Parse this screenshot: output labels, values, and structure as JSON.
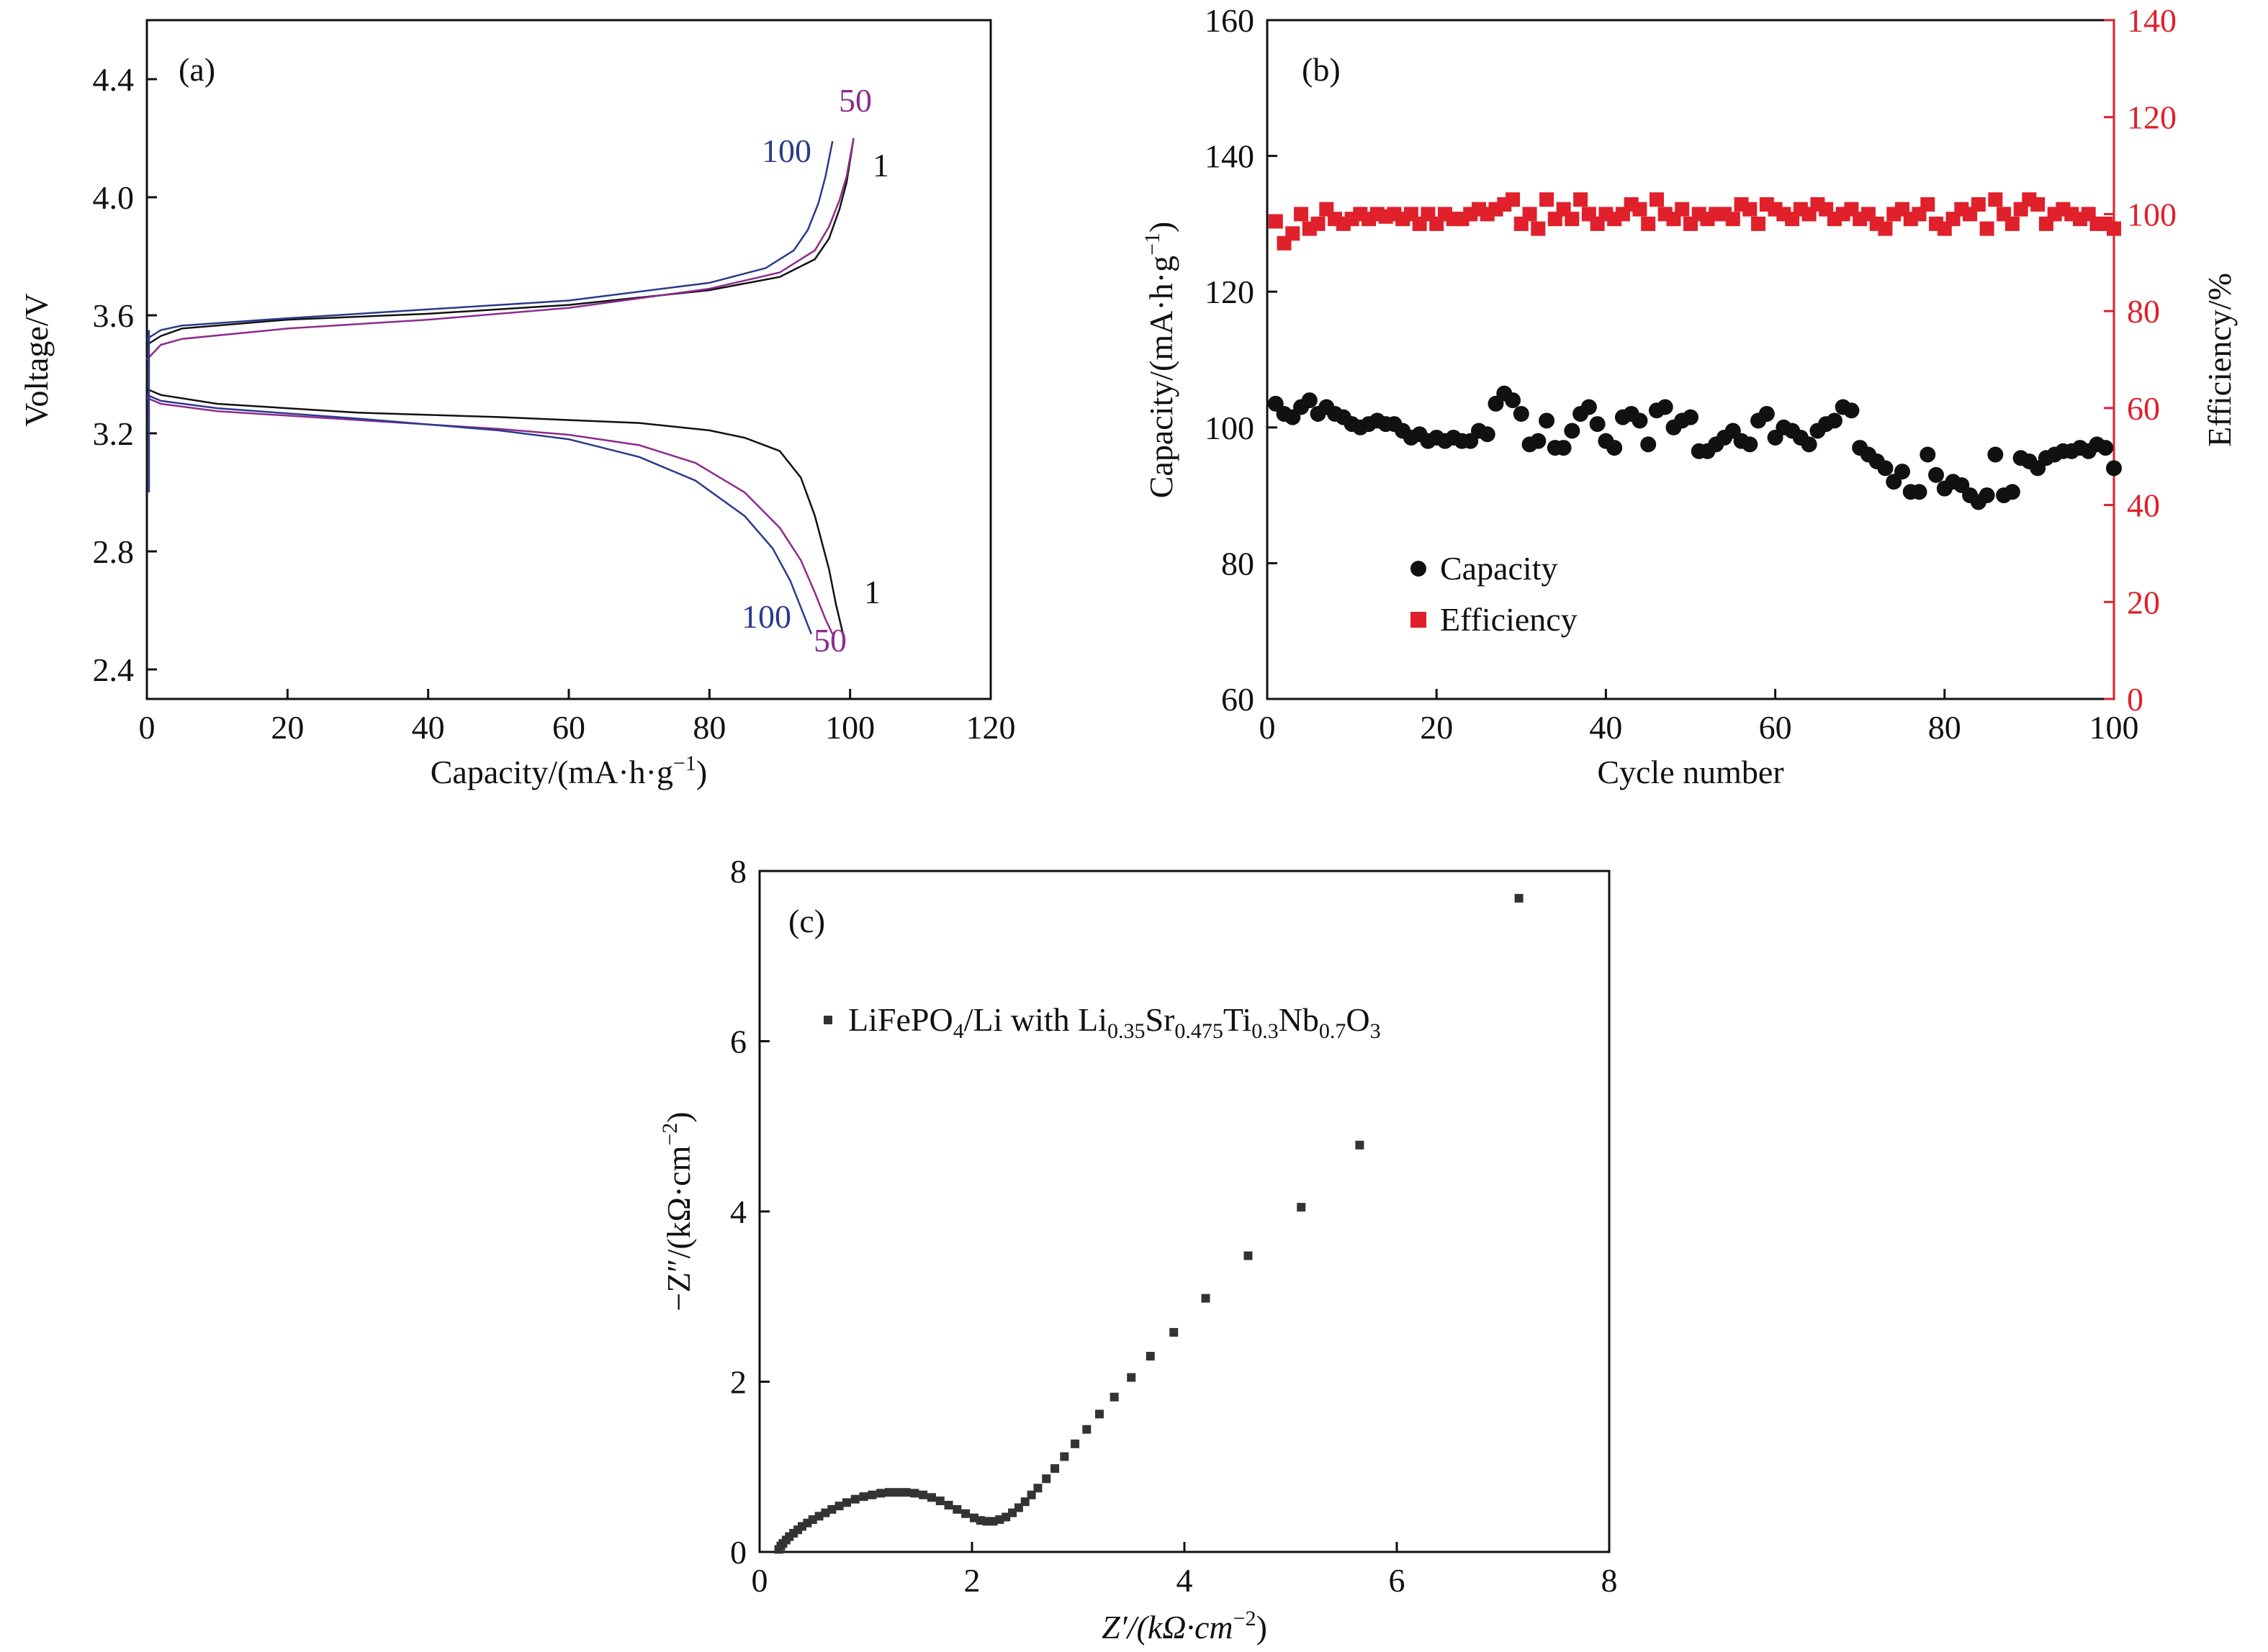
{
  "colors": {
    "black": "#111111",
    "red": "#e0202a",
    "blue": "#2b3a8c",
    "magenta": "#8e2a8e"
  },
  "chart_data": [
    {
      "panel": "(a)",
      "type": "line",
      "xlabel_main": "Capacity/(mA·h·g",
      "xlabel_sup": "−1",
      "xlabel_end": ")",
      "ylabel": "Voltage/V",
      "xlim": [
        0,
        120
      ],
      "ylim": [
        2.3,
        4.6
      ],
      "xticks": [
        0,
        20,
        40,
        60,
        80,
        100,
        120
      ],
      "yticks": [
        2.4,
        2.8,
        3.2,
        3.6,
        4.0,
        4.4
      ],
      "ytick_labels": [
        "2.4",
        "2.8",
        "3.2",
        "3.6",
        "4.0",
        "4.4"
      ],
      "series": [
        {
          "name": "1",
          "color": "#111111",
          "charge": [
            [
              0,
              3.5
            ],
            [
              2,
              3.53
            ],
            [
              5,
              3.555
            ],
            [
              20,
              3.585
            ],
            [
              40,
              3.605
            ],
            [
              60,
              3.635
            ],
            [
              80,
              3.685
            ],
            [
              90,
              3.73
            ],
            [
              95,
              3.79
            ],
            [
              97,
              3.86
            ],
            [
              98.5,
              3.96
            ],
            [
              99.5,
              4.05
            ],
            [
              100.5,
              4.2
            ]
          ],
          "discharge": [
            [
              0,
              3.35
            ],
            [
              2,
              3.33
            ],
            [
              10,
              3.3
            ],
            [
              30,
              3.27
            ],
            [
              50,
              3.255
            ],
            [
              70,
              3.235
            ],
            [
              80,
              3.21
            ],
            [
              85,
              3.185
            ],
            [
              90,
              3.14
            ],
            [
              93,
              3.05
            ],
            [
              95,
              2.92
            ],
            [
              97,
              2.74
            ],
            [
              98,
              2.62
            ],
            [
              99,
              2.52
            ]
          ]
        },
        {
          "name": "50",
          "color": "#8e2a8e",
          "charge": [
            [
              0,
              3.45
            ],
            [
              2,
              3.5
            ],
            [
              5,
              3.52
            ],
            [
              20,
              3.555
            ],
            [
              40,
              3.585
            ],
            [
              60,
              3.625
            ],
            [
              80,
              3.69
            ],
            [
              90,
              3.745
            ],
            [
              95,
              3.82
            ],
            [
              97,
              3.9
            ],
            [
              98.5,
              3.99
            ],
            [
              99.5,
              4.07
            ],
            [
              100.5,
              4.2
            ]
          ],
          "discharge": [
            [
              0,
              3.32
            ],
            [
              2,
              3.3
            ],
            [
              10,
              3.275
            ],
            [
              30,
              3.245
            ],
            [
              50,
              3.215
            ],
            [
              60,
              3.195
            ],
            [
              70,
              3.16
            ],
            [
              78,
              3.1
            ],
            [
              85,
              3.0
            ],
            [
              90,
              2.88
            ],
            [
              93,
              2.77
            ],
            [
              95,
              2.66
            ],
            [
              96.5,
              2.57
            ],
            [
              97.5,
              2.52
            ]
          ]
        },
        {
          "name": "100",
          "color": "#2b3a8c",
          "charge": [
            [
              0,
              3.52
            ],
            [
              2,
              3.55
            ],
            [
              5,
              3.565
            ],
            [
              20,
              3.59
            ],
            [
              40,
              3.62
            ],
            [
              60,
              3.65
            ],
            [
              80,
              3.71
            ],
            [
              88,
              3.76
            ],
            [
              92,
              3.82
            ],
            [
              94,
              3.89
            ],
            [
              95.5,
              3.98
            ],
            [
              96.5,
              4.07
            ],
            [
              97.5,
              4.19
            ]
          ],
          "discharge": [
            [
              0,
              3.33
            ],
            [
              2,
              3.31
            ],
            [
              10,
              3.285
            ],
            [
              30,
              3.25
            ],
            [
              50,
              3.21
            ],
            [
              60,
              3.18
            ],
            [
              70,
              3.12
            ],
            [
              78,
              3.04
            ],
            [
              85,
              2.92
            ],
            [
              89,
              2.81
            ],
            [
              91.5,
              2.7
            ],
            [
              93,
              2.61
            ],
            [
              94.5,
              2.52
            ]
          ]
        }
      ],
      "labels": {
        "charge_1": "1",
        "charge_50": "50",
        "charge_100": "100",
        "discharge_1": "1",
        "discharge_50": "50",
        "discharge_100": "100"
      }
    },
    {
      "panel": "(b)",
      "type": "scatter",
      "xlabel": "Cycle number",
      "ylabel_left_main": "Capacity/(mA·h·g",
      "ylabel_left_sup": "−1",
      "ylabel_left_end": ")",
      "ylabel_right": "Efficiency/%",
      "xlim": [
        0,
        100
      ],
      "ylim_left": [
        60,
        160
      ],
      "ylim_right": [
        0,
        140
      ],
      "xticks": [
        0,
        20,
        40,
        60,
        80,
        100
      ],
      "yticks_left": [
        60,
        80,
        100,
        120,
        140,
        160
      ],
      "yticks_right": [
        0,
        20,
        40,
        60,
        80,
        100,
        120,
        140
      ],
      "legend_position": "bottom-left",
      "series": [
        {
          "name": "Capacity",
          "color": "#111111",
          "marker": "circle",
          "x": [
            1,
            2,
            3,
            4,
            5,
            6,
            7,
            8,
            9,
            10,
            11,
            12,
            13,
            14,
            15,
            16,
            17,
            18,
            19,
            20,
            21,
            22,
            23,
            24,
            25,
            26,
            27,
            28,
            29,
            30,
            31,
            32,
            33,
            34,
            35,
            36,
            37,
            38,
            39,
            40,
            41,
            42,
            43,
            44,
            45,
            46,
            47,
            48,
            49,
            50,
            51,
            52,
            53,
            54,
            55,
            56,
            57,
            58,
            59,
            60,
            61,
            62,
            63,
            64,
            65,
            66,
            67,
            68,
            69,
            70,
            71,
            72,
            73,
            74,
            75,
            76,
            77,
            78,
            79,
            80,
            81,
            82,
            83,
            84,
            85,
            86,
            87,
            88,
            89,
            90,
            91,
            92,
            93,
            94,
            95,
            96,
            97,
            98,
            99,
            100
          ],
          "y": [
            103.5,
            102,
            101.5,
            103,
            104,
            102,
            103,
            102,
            101.5,
            100.5,
            100,
            100.5,
            101,
            100.5,
            100.5,
            99.5,
            98.5,
            99,
            98,
            98.5,
            98,
            98.5,
            98,
            98,
            99.5,
            99,
            103.5,
            105,
            104,
            102,
            97.5,
            98,
            101,
            97,
            97,
            99.5,
            102,
            103,
            100.5,
            98,
            97,
            101.5,
            102,
            101,
            97.5,
            102.5,
            103,
            100,
            101,
            101.5,
            96.5,
            96.5,
            97.5,
            98.5,
            99.5,
            98,
            97.5,
            101,
            102,
            98.5,
            100,
            99.5,
            98.5,
            97.5,
            99.5,
            100.5,
            101,
            103,
            102.5,
            97,
            96,
            95,
            94,
            92,
            93.5,
            90.5,
            90.5,
            96,
            93,
            91,
            92,
            91.5,
            90,
            89,
            90,
            96,
            90,
            90.5,
            95.5,
            95,
            94,
            95.5,
            96,
            96.5,
            96.5,
            97,
            96.5,
            97.5,
            97,
            94
          ]
        },
        {
          "name": "Efficiency",
          "color": "#e0202a",
          "marker": "square",
          "x": [
            1,
            2,
            3,
            4,
            5,
            6,
            7,
            8,
            9,
            10,
            11,
            12,
            13,
            14,
            15,
            16,
            17,
            18,
            19,
            20,
            21,
            22,
            23,
            24,
            25,
            26,
            27,
            28,
            29,
            30,
            31,
            32,
            33,
            34,
            35,
            36,
            37,
            38,
            39,
            40,
            41,
            42,
            43,
            44,
            45,
            46,
            47,
            48,
            49,
            50,
            51,
            52,
            53,
            54,
            55,
            56,
            57,
            58,
            59,
            60,
            61,
            62,
            63,
            64,
            65,
            66,
            67,
            68,
            69,
            70,
            71,
            72,
            73,
            74,
            75,
            76,
            77,
            78,
            79,
            80,
            81,
            82,
            83,
            84,
            85,
            86,
            87,
            88,
            89,
            90,
            91,
            92,
            93,
            94,
            95,
            96,
            97,
            98,
            99,
            100
          ],
          "y": [
            98.5,
            94,
            96,
            100,
            97,
            98,
            101,
            99,
            98,
            99,
            100,
            99,
            100,
            99.5,
            100,
            99,
            100,
            98,
            100,
            98,
            100,
            99,
            99,
            100,
            101,
            100,
            101,
            102,
            103,
            98,
            100,
            97,
            103,
            99,
            101,
            99,
            103,
            100,
            98,
            100,
            99,
            100,
            102,
            101,
            98,
            103,
            100,
            99,
            101,
            98,
            100,
            99,
            100,
            100,
            99,
            102,
            101,
            98,
            102,
            101,
            100,
            99,
            101,
            100,
            102,
            101,
            99,
            100,
            101,
            99,
            100,
            98,
            97,
            100,
            101,
            99,
            100,
            102,
            98,
            97,
            99,
            101,
            100,
            102,
            97,
            103,
            100,
            98,
            101,
            103,
            102,
            98,
            100,
            101,
            100,
            99,
            100,
            98,
            98,
            97
          ]
        }
      ]
    },
    {
      "panel": "(c)",
      "type": "scatter",
      "xlabel_main": "Z′/(kΩ·cm",
      "xlabel_sup": "−2",
      "xlabel_end": ")",
      "ylabel_main": "−Z″/(kΩ·cm",
      "ylabel_sup": "−2",
      "ylabel_end": ")",
      "xlim": [
        0,
        8
      ],
      "ylim": [
        0,
        8
      ],
      "xticks": [
        0,
        2,
        4,
        6,
        8
      ],
      "yticks": [
        0,
        2,
        4,
        6,
        8
      ],
      "legend_position": "top-left",
      "series": [
        {
          "name": "LiFePO4/Li with Li0.35Sr0.475Ti0.3Nb0.7O3",
          "color": "#333333",
          "marker": "square",
          "x": [
            0.18,
            0.2,
            0.22,
            0.25,
            0.28,
            0.32,
            0.36,
            0.4,
            0.45,
            0.5,
            0.56,
            0.62,
            0.68,
            0.75,
            0.82,
            0.9,
            0.98,
            1.06,
            1.14,
            1.22,
            1.3,
            1.38,
            1.46,
            1.54,
            1.62,
            1.7,
            1.78,
            1.86,
            1.94,
            2.02,
            2.08,
            2.14,
            2.2,
            2.26,
            2.32,
            2.38,
            2.44,
            2.5,
            2.56,
            2.62,
            2.7,
            2.78,
            2.87,
            2.97,
            3.08,
            3.2,
            3.34,
            3.5,
            3.68,
            3.9,
            4.2,
            4.6,
            5.1,
            5.65,
            7.15
          ],
          "y": [
            0.03,
            0.07,
            0.1,
            0.14,
            0.18,
            0.22,
            0.26,
            0.3,
            0.34,
            0.38,
            0.42,
            0.46,
            0.5,
            0.54,
            0.58,
            0.62,
            0.65,
            0.67,
            0.69,
            0.7,
            0.7,
            0.7,
            0.69,
            0.67,
            0.64,
            0.6,
            0.55,
            0.5,
            0.45,
            0.4,
            0.37,
            0.36,
            0.36,
            0.38,
            0.41,
            0.46,
            0.52,
            0.59,
            0.67,
            0.75,
            0.86,
            0.98,
            1.12,
            1.27,
            1.44,
            1.62,
            1.82,
            2.05,
            2.3,
            2.58,
            2.98,
            3.48,
            4.05,
            4.78,
            7.68
          ]
        }
      ],
      "legend": {
        "prefix": "LiFePO",
        "sub1": "4",
        "mid1": "/Li with Li",
        "sub2": "0.35",
        "mid2": "Sr",
        "sub3": "0.475",
        "mid3": "Ti",
        "sub4": "0.3",
        "mid4": "Nb",
        "sub5": "0.7",
        "mid5": "O",
        "sub6": "3"
      }
    }
  ]
}
